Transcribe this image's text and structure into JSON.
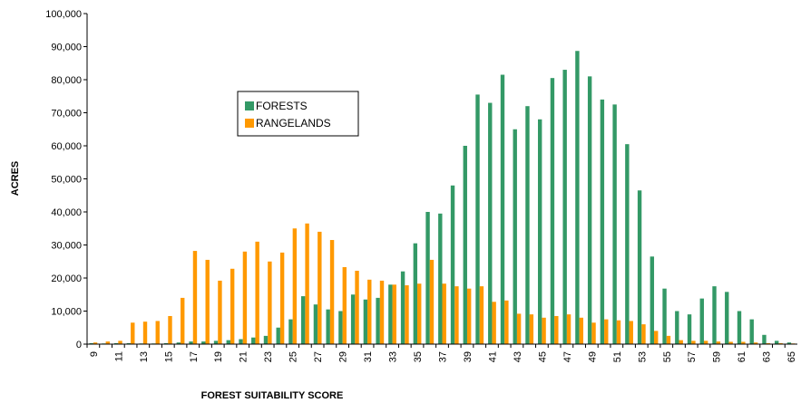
{
  "chart_data": {
    "type": "bar",
    "x_label": "FOREST SUITABILITY SCORE",
    "y_label": "ACRES",
    "categories": [
      "9",
      null,
      "11",
      null,
      "13",
      null,
      "15",
      null,
      "17",
      null,
      "19",
      null,
      "21",
      null,
      "23",
      null,
      "25",
      null,
      "27",
      null,
      "29",
      null,
      "31",
      null,
      "33",
      null,
      "35",
      null,
      "37",
      null,
      "39",
      null,
      "41",
      null,
      "43",
      null,
      "45",
      null,
      "47",
      null,
      "49",
      null,
      "51",
      null,
      "53",
      null,
      "55",
      null,
      "57",
      null,
      "59",
      null,
      "61",
      null,
      "63",
      null,
      "65"
    ],
    "series": [
      {
        "name": "FORESTS",
        "color": "#339966",
        "values": [
          300,
          200,
          300,
          300,
          200,
          200,
          300,
          500,
          800,
          800,
          1000,
          1200,
          1500,
          2000,
          2500,
          5000,
          7500,
          14500,
          12000,
          10500,
          10000,
          15000,
          13500,
          14000,
          18000,
          22000,
          30500,
          40000,
          39500,
          48000,
          60000,
          75500,
          73000,
          81500,
          65000,
          72000,
          68000,
          80500,
          83000,
          88700,
          81000,
          74000,
          72500,
          60500,
          46500,
          26500,
          16800,
          10000,
          9000,
          13800,
          17500,
          15800,
          10000,
          7500,
          2800,
          1000,
          500
        ]
      },
      {
        "name": "RANGELANDS",
        "color": "#ff9900",
        "values": [
          500,
          800,
          1000,
          6500,
          6800,
          7000,
          8500,
          14000,
          28200,
          25500,
          19200,
          22800,
          28000,
          31000,
          25000,
          27700,
          35000,
          36500,
          34000,
          31500,
          23300,
          22200,
          19500,
          19200,
          18000,
          17800,
          18300,
          25500,
          18300,
          17500,
          16800,
          17500,
          12800,
          13200,
          9200,
          9000,
          8000,
          8500,
          9000,
          8000,
          6500,
          7500,
          7200,
          7000,
          6000,
          4000,
          2500,
          1200,
          1000,
          1000,
          800,
          700,
          700,
          500,
          300,
          300,
          200
        ]
      }
    ],
    "ylim": [
      0,
      100000
    ],
    "yticks": [
      0,
      {
        "value": 10000,
        "label": "10,000"
      },
      {
        "value": 20000,
        "label": "20,000"
      },
      {
        "value": 30000,
        "label": "30,000"
      },
      {
        "value": 40000,
        "label": "40,000"
      },
      {
        "value": 50000,
        "label": "50,000"
      },
      {
        "value": 60000,
        "label": "60,000"
      },
      {
        "value": 70000,
        "label": "70,000"
      },
      {
        "value": 80000,
        "label": "80,000"
      },
      {
        "value": 90000,
        "label": "90,000"
      },
      {
        "value": 100000,
        "label": "100,000"
      }
    ],
    "grid": false
  }
}
